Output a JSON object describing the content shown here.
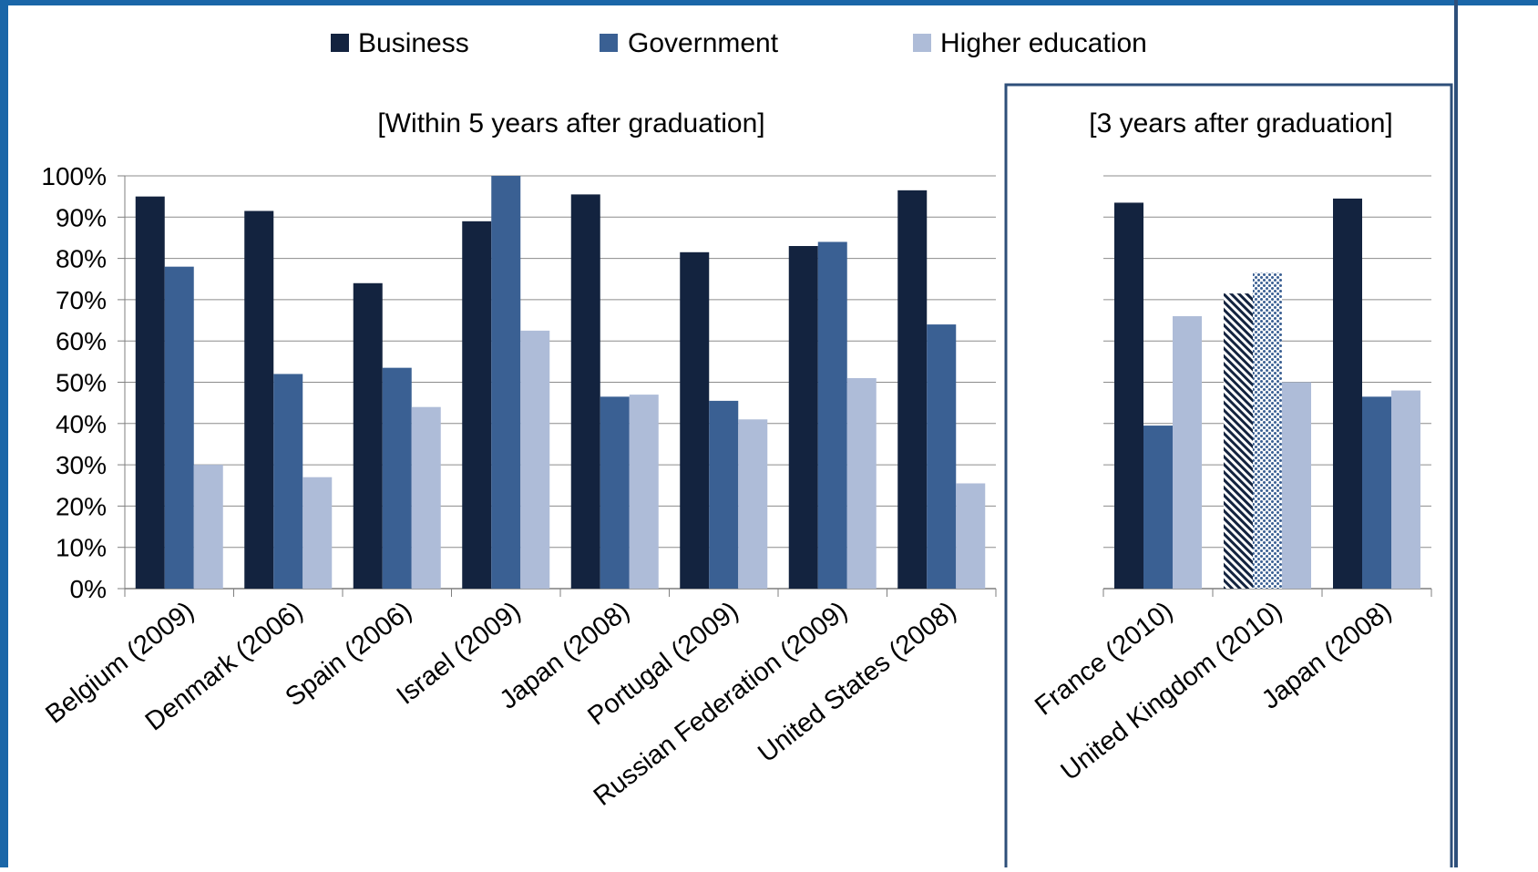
{
  "legend": {
    "items": [
      {
        "label": "Business",
        "color": "#13233f"
      },
      {
        "label": "Government",
        "color": "#3a6093"
      },
      {
        "label": "Higher education",
        "color": "#aebcd8"
      }
    ]
  },
  "colors": {
    "frame_blue": "#1a66a8",
    "panel_border": "#2e4f7a",
    "gridline": "#8c8c8c",
    "axis": "#7f7f7f"
  },
  "chart_data": [
    {
      "type": "bar",
      "title": "[Within 5 years after graduation]",
      "xlabel": "",
      "ylabel": "",
      "ylim": [
        0,
        100
      ],
      "y_ticks": [
        "0%",
        "10%",
        "20%",
        "30%",
        "40%",
        "50%",
        "60%",
        "70%",
        "80%",
        "90%",
        "100%"
      ],
      "grid": true,
      "legend_position": "top",
      "categories": [
        "Belgium (2009)",
        "Denmark (2006)",
        "Spain (2006)",
        "Israel (2009)",
        "Japan (2008)",
        "Portugal (2009)",
        "Russian Federation (2009)",
        "United States (2008)"
      ],
      "series": [
        {
          "name": "Business",
          "values": [
            95,
            91.5,
            74,
            89,
            95.5,
            81.5,
            83,
            96.5
          ]
        },
        {
          "name": "Government",
          "values": [
            78,
            52,
            53.5,
            100,
            46.5,
            45.5,
            84,
            64
          ]
        },
        {
          "name": "Higher education",
          "values": [
            30,
            27,
            44,
            62.5,
            47,
            41,
            51,
            25.5
          ]
        }
      ]
    },
    {
      "type": "bar",
      "title": "[3 years after graduation]",
      "xlabel": "",
      "ylabel": "",
      "ylim": [
        0,
        100
      ],
      "grid": true,
      "categories": [
        "France (2010)",
        "United Kingdom (2010)",
        "Japan (2008)"
      ],
      "series": [
        {
          "name": "Business",
          "values": [
            93.5,
            71.5,
            94.5
          ]
        },
        {
          "name": "Government",
          "values": [
            39.5,
            76.5,
            46.5
          ]
        },
        {
          "name": "Higher education",
          "values": [
            66,
            50,
            48
          ]
        }
      ],
      "patterned_bars": [
        {
          "category": "United Kingdom (2010)",
          "series": "Business",
          "pattern": "diagonal-hatch"
        },
        {
          "category": "United Kingdom (2010)",
          "series": "Government",
          "pattern": "dots"
        }
      ]
    }
  ]
}
